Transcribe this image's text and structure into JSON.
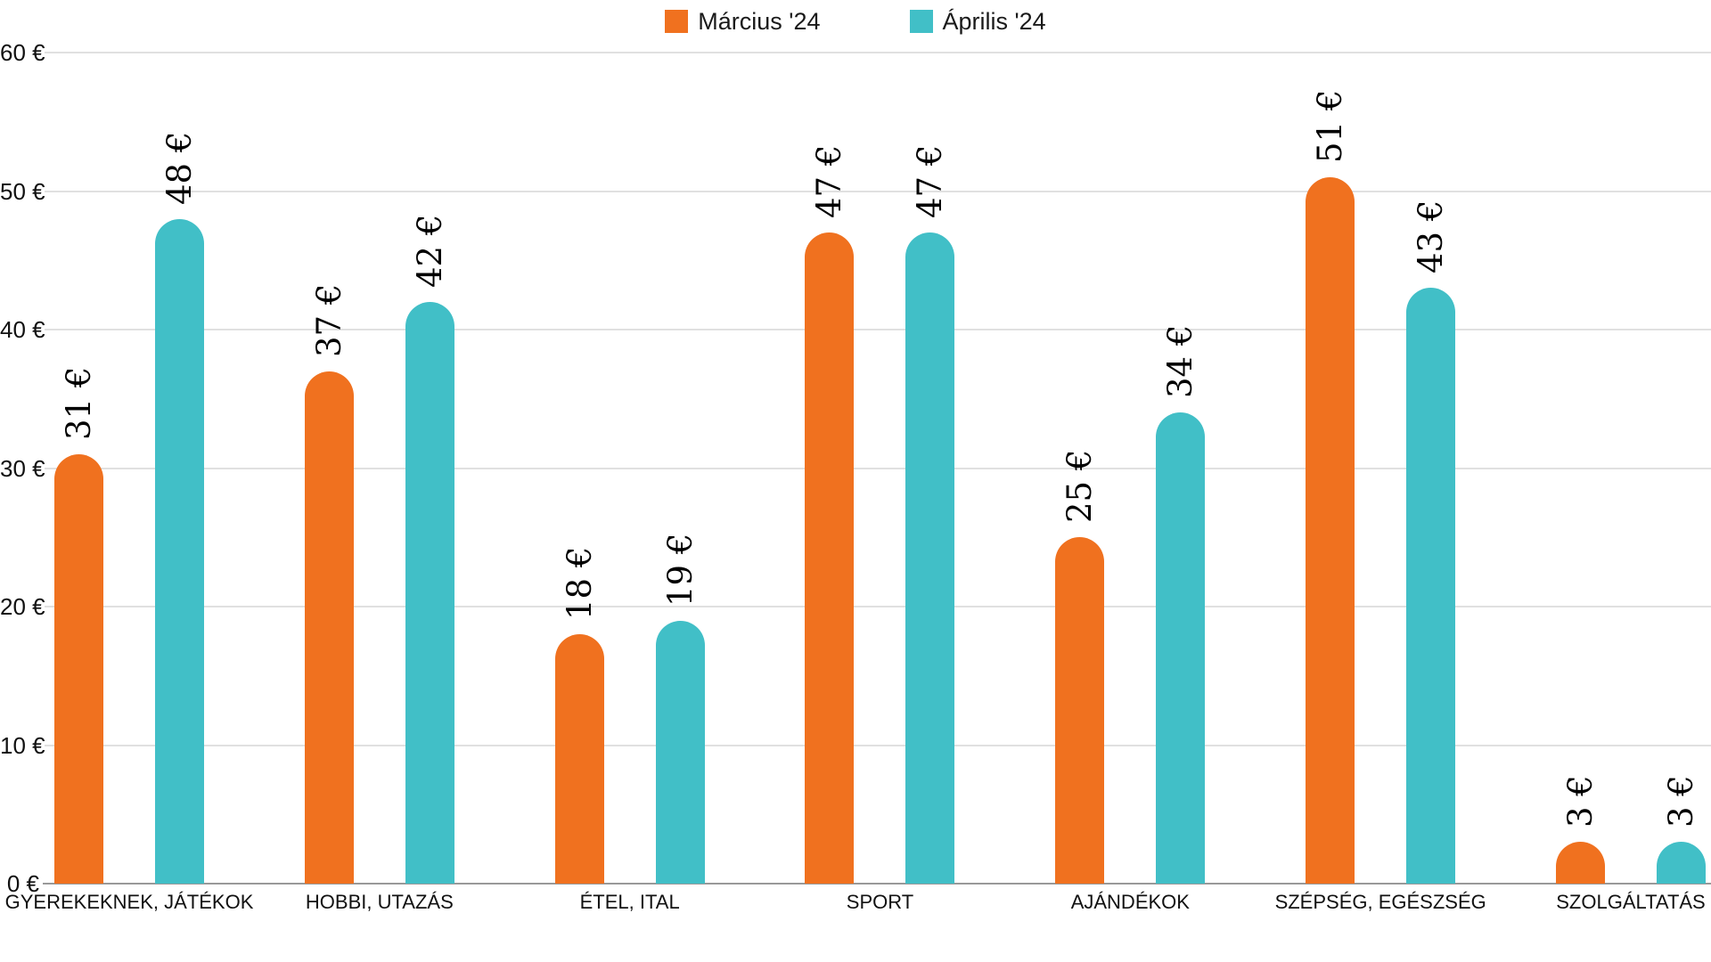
{
  "chart_data": {
    "type": "bar",
    "title": "",
    "categories": [
      "GYEREKEKNEK, JÁTÉKOK",
      "HOBBI, UTAZÁS",
      "ÉTEL, ITAL",
      "SPORT",
      "AJÁNDÉKOK",
      "SZÉPSÉG, EGÉSZSÉG",
      "SZOLGÁLTATÁS"
    ],
    "series": [
      {
        "name": "Március '24",
        "color": "#F0711F",
        "values": [
          31,
          37,
          18,
          47,
          25,
          51,
          3
        ]
      },
      {
        "name": "Április '24",
        "color": "#41BFC7",
        "values": [
          48,
          42,
          19,
          47,
          34,
          43,
          3
        ]
      }
    ],
    "value_suffix": " €",
    "y_axis_tick_labels": [
      "0 €",
      "10 €",
      "20 €",
      "30 €",
      "40 €",
      "50 €",
      "60 €"
    ],
    "ylim": [
      0,
      60
    ],
    "y_step": 10,
    "grid": true,
    "legend_position": "top",
    "data_labels_rotated": true
  },
  "colors": {
    "series_marcius": "#F0711F",
    "series_aprilis": "#41BFC7",
    "gridline": "#e0e0e0",
    "axis_line": "#999999",
    "text": "#111111",
    "background": "#ffffff"
  }
}
